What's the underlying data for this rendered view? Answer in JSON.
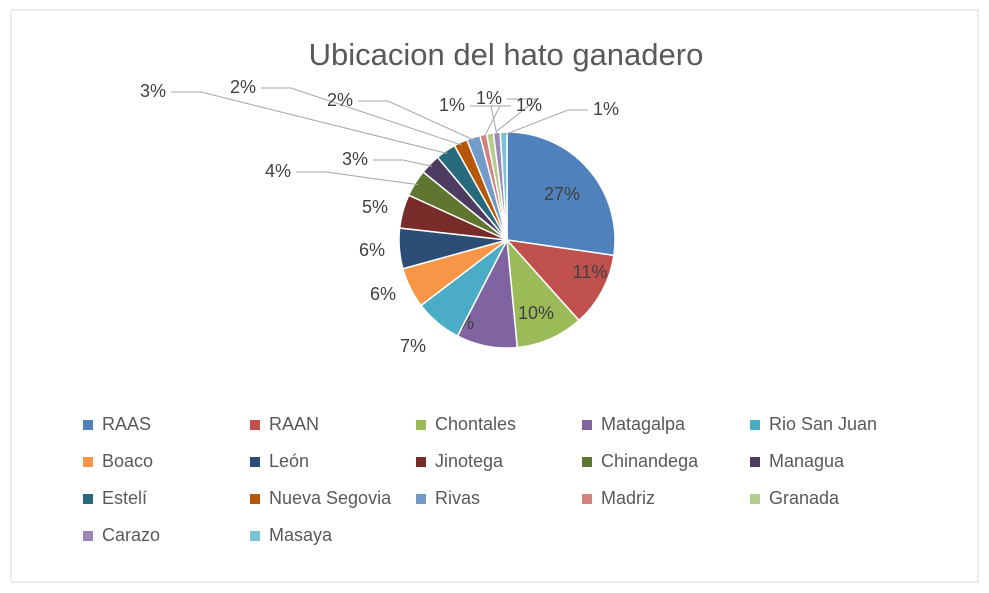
{
  "chart_data": {
    "type": "pie",
    "title": "Ubicacion del hato ganadero",
    "categories": [
      "RAAS",
      "RAAN",
      "Chontales",
      "Matagalpa",
      "Rio San Juan",
      "Boaco",
      "León",
      "Jinotega",
      "Chinandega",
      "Managua",
      "Estelí",
      "Nueva Segovia",
      "Rivas",
      "Madriz",
      "Granada",
      "Carazo",
      "Masaya"
    ],
    "values": [
      27,
      11,
      10,
      9,
      7,
      6,
      6,
      5,
      4,
      3,
      3,
      2,
      2,
      1,
      1,
      1,
      1
    ],
    "value_labels": [
      "27%",
      "11%",
      "10%",
      "9%",
      "7%",
      "6%",
      "6%",
      "5%",
      "4%",
      "3%",
      "3%",
      "2%",
      "2%",
      "1%",
      "1%",
      "1%",
      "1%"
    ],
    "colors": [
      "#4f81bd",
      "#c0504d",
      "#9bbb59",
      "#8064a2",
      "#4bacc6",
      "#f79646",
      "#2c4d75",
      "#772c2a",
      "#5f7530",
      "#4d3b62",
      "#276a7c",
      "#b65708",
      "#729aca",
      "#d3807e",
      "#b4cc8c",
      "#9c87b8",
      "#7ac3d6"
    ],
    "legend": "bottom"
  }
}
